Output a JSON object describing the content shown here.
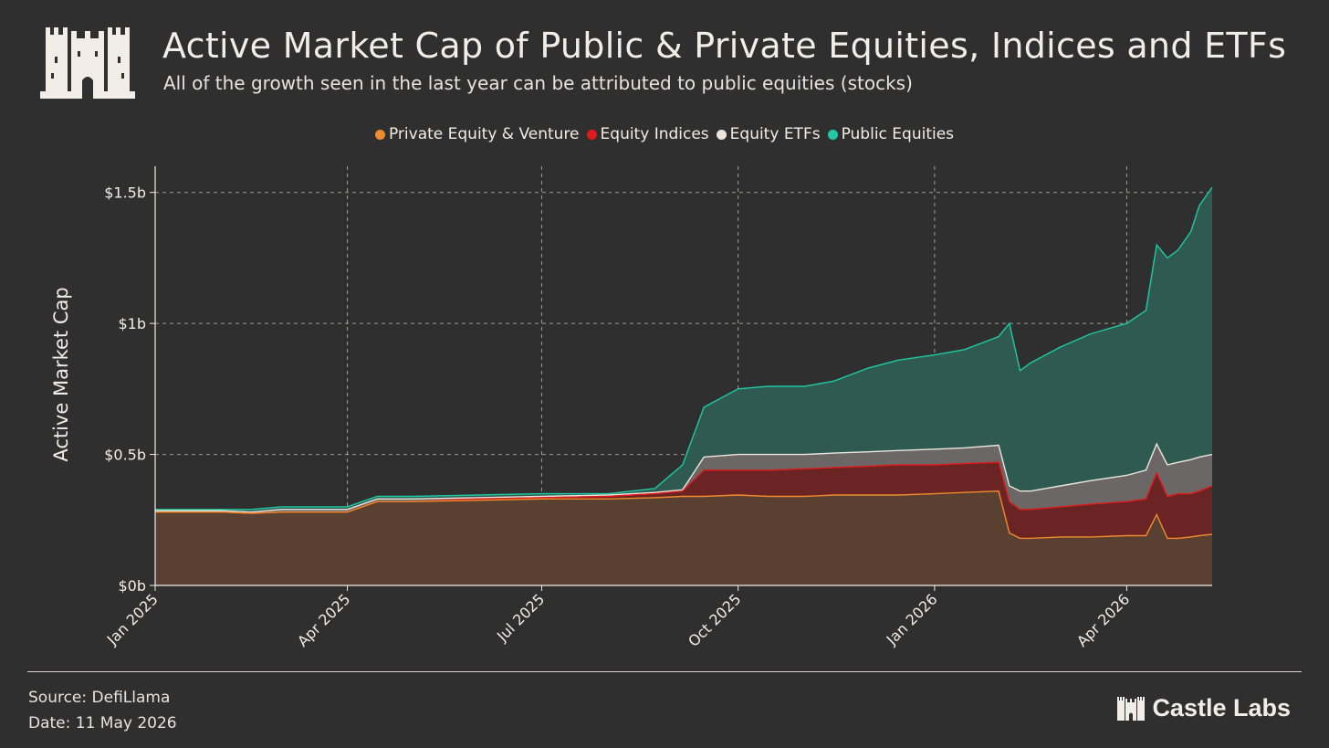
{
  "header": {
    "title": "Active Market Cap of Public & Private Equities, Indices and ETFs",
    "subtitle": "All of the growth seen in the last year can be attributed to public equities (stocks)"
  },
  "footer": {
    "source": "Source: DefiLlama",
    "date": "Date: 11 May 2026",
    "brand": "Castle Labs"
  },
  "colors": {
    "background": "#2f2f2f",
    "private_equity": "#f08a2c",
    "equity_indices": "#e01b1b",
    "equity_etfs": "#ece6dc",
    "public_equities": "#1fc9a6"
  },
  "icons": {
    "logo": "castle-icon",
    "brand": "castle-icon"
  },
  "chart_data": {
    "type": "area",
    "stacked": true,
    "ylabel": "Active Market Cap",
    "xlabel": "",
    "ylim": [
      0,
      1.6
    ],
    "x_range": [
      "2025-01-01",
      "2026-05-11"
    ],
    "grid": true,
    "legend_position": "top-center",
    "y_ticks": [
      {
        "value": 0,
        "label": "$0b"
      },
      {
        "value": 0.5,
        "label": "$0.5b"
      },
      {
        "value": 1,
        "label": "$1b"
      },
      {
        "value": 1.5,
        "label": "$1.5b"
      }
    ],
    "x_ticks": [
      {
        "date": "2025-01-01",
        "label": "Jan 2025"
      },
      {
        "date": "2025-04-01",
        "label": "Apr 2025"
      },
      {
        "date": "2025-07-01",
        "label": "Jul 2025"
      },
      {
        "date": "2025-10-01",
        "label": "Oct 2025"
      },
      {
        "date": "2026-01-01",
        "label": "Jan 2026"
      },
      {
        "date": "2026-04-01",
        "label": "Apr 2026"
      }
    ],
    "x": [
      "2025-01-01",
      "2025-02-01",
      "2025-02-15",
      "2025-03-01",
      "2025-04-01",
      "2025-04-15",
      "2025-05-01",
      "2025-06-01",
      "2025-07-01",
      "2025-08-01",
      "2025-08-23",
      "2025-09-05",
      "2025-09-15",
      "2025-10-01",
      "2025-10-15",
      "2025-11-01",
      "2025-11-15",
      "2025-12-01",
      "2025-12-15",
      "2026-01-01",
      "2026-01-15",
      "2026-01-31",
      "2026-02-05",
      "2026-02-10",
      "2026-02-15",
      "2026-03-01",
      "2026-03-15",
      "2026-04-01",
      "2026-04-10",
      "2026-04-15",
      "2026-04-20",
      "2026-04-25",
      "2026-05-01",
      "2026-05-05",
      "2026-05-11"
    ],
    "series": [
      {
        "name": "Private Equity & Venture",
        "stack_total": false,
        "values": [
          0.28,
          0.28,
          0.275,
          0.28,
          0.28,
          0.32,
          0.32,
          0.325,
          0.33,
          0.33,
          0.335,
          0.34,
          0.34,
          0.345,
          0.34,
          0.34,
          0.345,
          0.345,
          0.345,
          0.35,
          0.355,
          0.36,
          0.2,
          0.18,
          0.18,
          0.185,
          0.185,
          0.19,
          0.19,
          0.27,
          0.18,
          0.18,
          0.185,
          0.19,
          0.195
        ]
      },
      {
        "name": "Equity Indices",
        "values": [
          0.28,
          0.28,
          0.275,
          0.28,
          0.28,
          0.32,
          0.32,
          0.33,
          0.335,
          0.34,
          0.35,
          0.36,
          0.44,
          0.44,
          0.44,
          0.445,
          0.45,
          0.455,
          0.46,
          0.46,
          0.465,
          0.47,
          0.32,
          0.29,
          0.29,
          0.3,
          0.31,
          0.32,
          0.33,
          0.43,
          0.34,
          0.35,
          0.35,
          0.36,
          0.38
        ]
      },
      {
        "name": "Equity ETFs",
        "values": [
          0.285,
          0.285,
          0.28,
          0.29,
          0.29,
          0.33,
          0.33,
          0.335,
          0.34,
          0.345,
          0.355,
          0.365,
          0.49,
          0.5,
          0.5,
          0.5,
          0.505,
          0.51,
          0.515,
          0.52,
          0.525,
          0.535,
          0.38,
          0.36,
          0.36,
          0.38,
          0.4,
          0.42,
          0.44,
          0.54,
          0.46,
          0.47,
          0.48,
          0.49,
          0.5
        ]
      },
      {
        "name": "Public Equities",
        "values": [
          0.29,
          0.29,
          0.29,
          0.3,
          0.3,
          0.34,
          0.34,
          0.345,
          0.35,
          0.35,
          0.37,
          0.46,
          0.68,
          0.75,
          0.76,
          0.76,
          0.78,
          0.83,
          0.86,
          0.88,
          0.9,
          0.95,
          1.0,
          0.82,
          0.85,
          0.91,
          0.96,
          1.0,
          1.05,
          1.3,
          1.25,
          1.28,
          1.35,
          1.45,
          1.52
        ]
      }
    ]
  }
}
